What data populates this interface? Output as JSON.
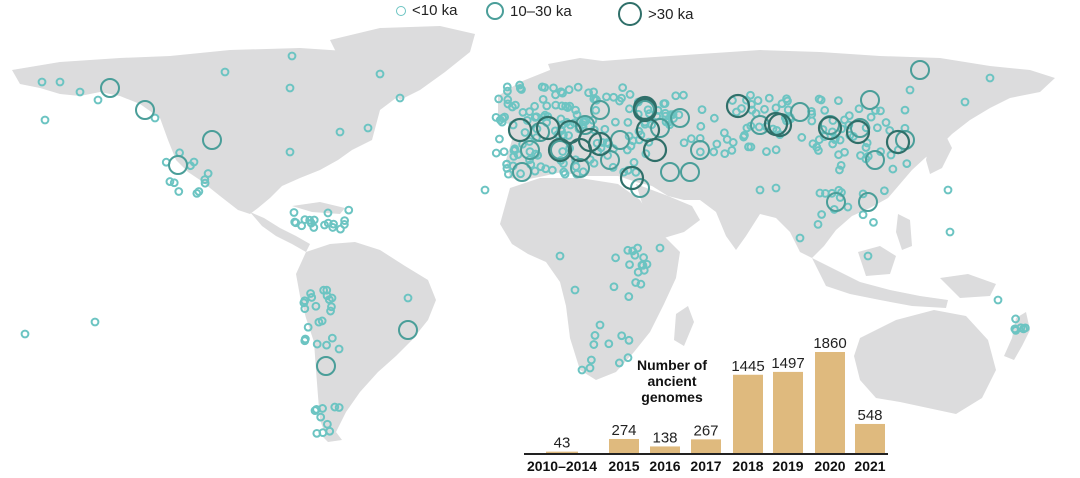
{
  "legend": {
    "items": [
      {
        "label": "<10 ka",
        "size": "small",
        "color": "#6cc4c2"
      },
      {
        "label": "10–30 ka",
        "size": "medium",
        "color": "#4a9e99"
      },
      {
        "label": ">30 ka",
        "size": "large",
        "color": "#2f6f69"
      }
    ]
  },
  "colors": {
    "land": "#dcdcdd",
    "bar": "#dfba7e",
    "site_small": "#6cc4c2",
    "site_medium": "#4a9e99",
    "site_large": "#2f6f69"
  },
  "chart_data": {
    "type": "bar",
    "title_lines": [
      "Number of",
      "ancient",
      "genomes"
    ],
    "categories": [
      "2010–2014",
      "2015",
      "2016",
      "2017",
      "2018",
      "2019",
      "2020",
      "2021"
    ],
    "values": [
      43,
      274,
      138,
      267,
      1445,
      1497,
      1860,
      548
    ],
    "data_labels": [
      "43",
      "274",
      "138",
      "267",
      "1445",
      "1497",
      "1860",
      "548"
    ],
    "ylim": [
      0,
      1860
    ],
    "xlabel": "",
    "ylabel": "",
    "grid": false
  }
}
